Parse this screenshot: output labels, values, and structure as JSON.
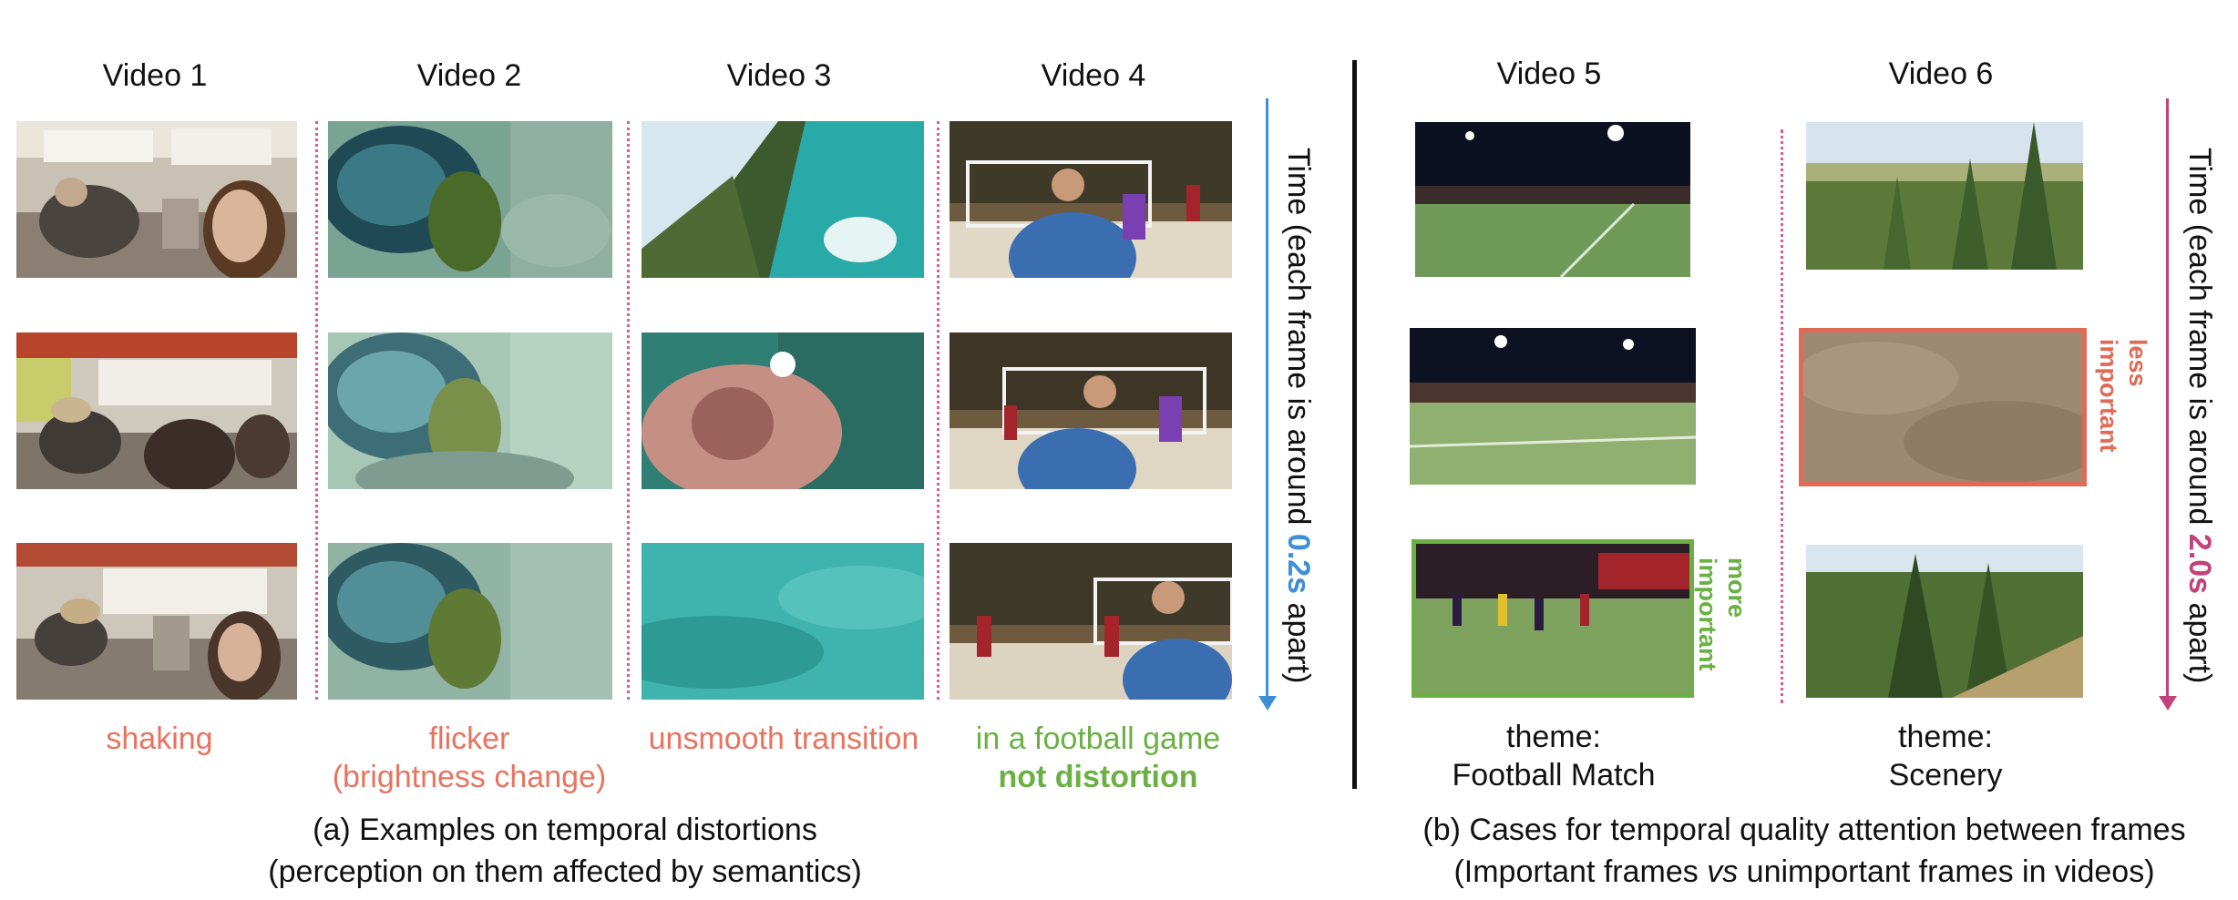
{
  "panel_a": {
    "videos": [
      {
        "title": "Video 1",
        "caption_lines": [
          "shaking"
        ],
        "caption_color": "#e8735f"
      },
      {
        "title": "Video 2",
        "caption_lines": [
          "flicker",
          "(brightness change)"
        ],
        "caption_color": "#e8735f"
      },
      {
        "title": "Video 3",
        "caption_lines": [
          "unsmooth transition"
        ],
        "caption_color": "#e8735f"
      },
      {
        "title": "Video 4",
        "caption_lines": [
          "in a football game"
        ],
        "caption_color": "#6ab043",
        "caption_bold": "not distortion"
      }
    ],
    "time_axis": {
      "prefix": "Time (each frame is around ",
      "value": "0.2s",
      "suffix": " apart)",
      "color": "#3d8fd6"
    },
    "caption_line1": "(a) Examples on temporal distortions",
    "caption_line2": "(perception on them affected by semantics)"
  },
  "panel_b": {
    "videos": [
      {
        "title": "Video 5",
        "theme_label": "theme:",
        "theme": "Football Match"
      },
      {
        "title": "Video 6",
        "theme_label": "theme:",
        "theme": "Scenery"
      }
    ],
    "more_important": [
      "more",
      "important"
    ],
    "less_important": [
      "less",
      "important"
    ],
    "more_color": "#6ab043",
    "less_color": "#e06a55",
    "time_axis": {
      "prefix": "Time (each frame is around ",
      "value": "2.0s",
      "suffix": " apart)",
      "color": "#c2427a"
    },
    "caption_line1": "(b) Cases for temporal quality attention between frames",
    "caption_line2_a": "(Important frames ",
    "caption_line2_vs": "vs",
    "caption_line2_b": " unimportant frames in videos)"
  }
}
